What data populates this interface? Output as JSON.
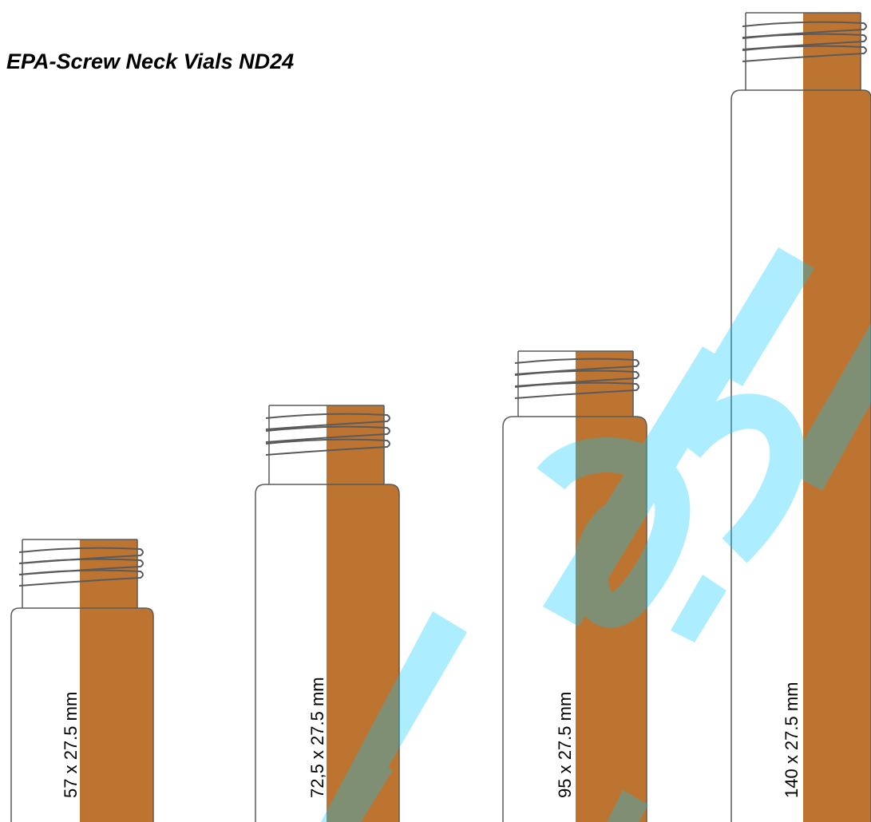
{
  "title": "EPA-Screw Neck Vials ND24",
  "vials": [
    {
      "label": "57 x 27.5 mm"
    },
    {
      "label": "72,5 x 27.5 mm"
    },
    {
      "label": "95 x 27.5 mm"
    },
    {
      "label": "140 x 27.5 mm"
    }
  ],
  "watermark_text": "labl",
  "colors": {
    "amber": "#bd7431",
    "outline": "#5a5a5a",
    "watermark": "#00c8ff"
  }
}
